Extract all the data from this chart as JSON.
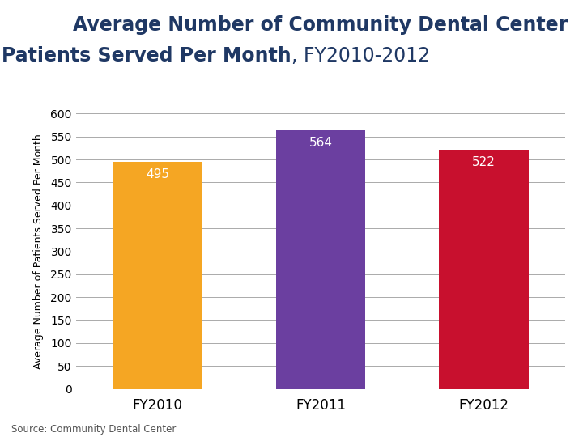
{
  "categories": [
    "FY2010",
    "FY2011",
    "FY2012"
  ],
  "values": [
    495,
    564,
    522
  ],
  "bar_colors": [
    "#F5A623",
    "#6B3FA0",
    "#C8102E"
  ],
  "ylabel": "Average Number of Patients Served Per Month",
  "ylim": [
    0,
    600
  ],
  "ytick_interval": 50,
  "label_colors": [
    "#ffffff",
    "#ffffff",
    "#ffffff"
  ],
  "source": "Source: Community Dental Center",
  "title_color": "#1F3864",
  "subtitle_color": "#F5A623",
  "bg_color": "#ffffff",
  "grid_color": "#aaaaaa",
  "title_line1": "Average Number of Community Dental Center",
  "title_line2_bold": "Patients Served Per Month",
  "title_line2_normal": ", FY2010-2012",
  "title_fontsize": 17,
  "bar_width": 0.55
}
